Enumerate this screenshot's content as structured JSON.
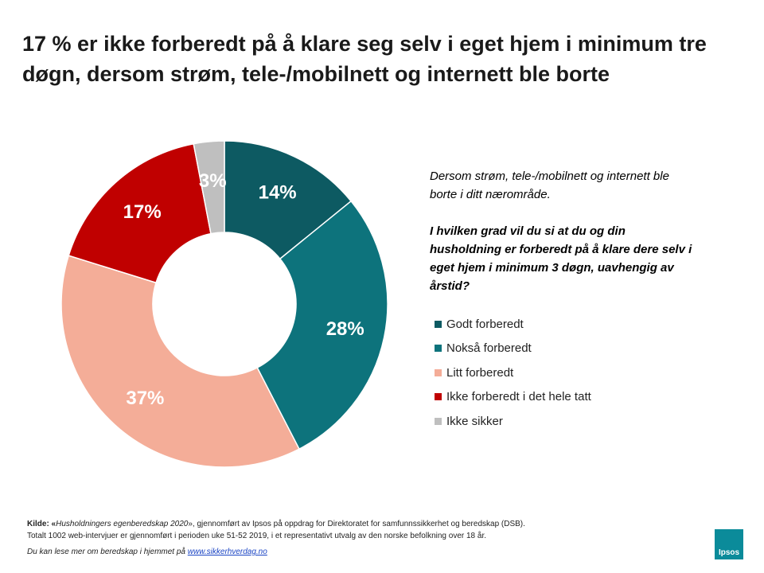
{
  "title": "17 % er ikke forberedt på å klare seg selv i eget hjem i minimum tre døgn, dersom strøm, tele-/mobilnett og internett ble borte",
  "question": {
    "intro": "Dersom strøm, tele-/mobilnett og internett ble borte i ditt nærområde.",
    "text": "I hvilken grad vil du si at du og din husholdning er forberedt på å klare dere selv i eget hjem i minimum 3 døgn, uavhengig av årstid?"
  },
  "chart_data": {
    "type": "pie",
    "variant": "donut",
    "categories": [
      "Godt forberedt",
      "Nokså forberedt",
      "Litt forberedt",
      "Ikke forberedt i det hele tatt",
      "Ikke sikker"
    ],
    "values": [
      14,
      28,
      37,
      17,
      3
    ],
    "labels": [
      "14%",
      "28%",
      "37%",
      "17%",
      "3%"
    ],
    "colors": [
      "#0d5a62",
      "#0d737c",
      "#f4ad98",
      "#c00000",
      "#bfbfbf"
    ],
    "label_colors": [
      "#ffffff",
      "#ffffff",
      "#ffffff",
      "#ffffff",
      "#ffffff"
    ],
    "unit": "%",
    "legend_position": "right"
  },
  "footer": {
    "source_prefix": "Kilde: «",
    "source_study": "Husholdningers egenberedskap 2020",
    "source_suffix": "», gjennomført av Ipsos på oppdrag for Direktoratet for samfunnssikkerhet og beredskap (DSB).",
    "method": "Totalt 1002 web-intervjuer er gjennomført i perioden uke 51-52 2019, i et representativt utvalg av den norske befolkning over 18 år.",
    "read_more": "Du kan lese mer om beredskap i hjemmet på",
    "link": "www.sikkerhverdag.no"
  },
  "logo": {
    "text": "Ipsos",
    "color": "#0b8b9a"
  }
}
